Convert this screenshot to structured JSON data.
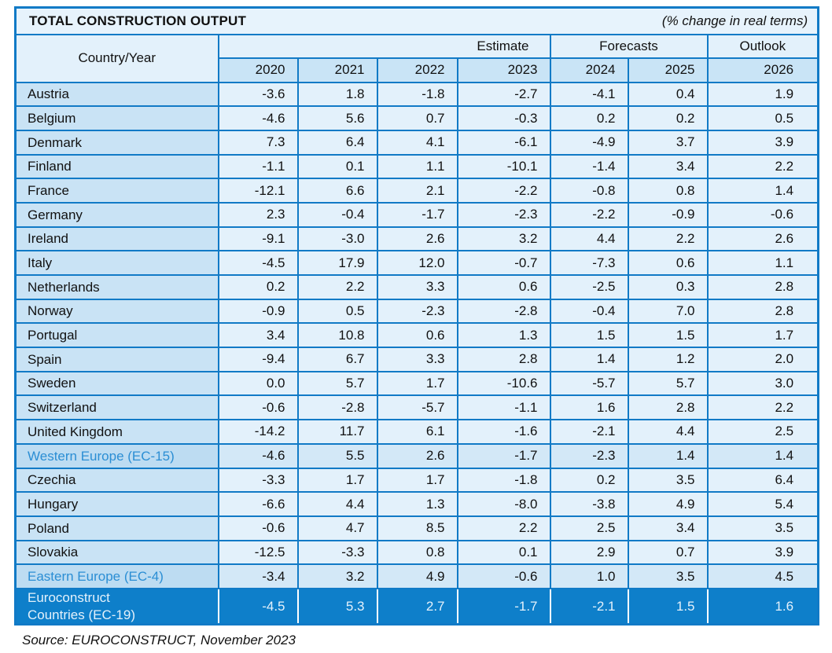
{
  "title": "TOTAL CONSTRUCTION OUTPUT",
  "subtitle": "(% change in real terms)",
  "header": {
    "country_year": "Country/Year",
    "group_labels": {
      "estimate": "Estimate",
      "forecasts": "Forecasts",
      "outlook": "Outlook"
    },
    "years": [
      "2020",
      "2021",
      "2022",
      "2023",
      "2024",
      "2025",
      "2026"
    ]
  },
  "source": "Source: EUROCONSTRUCT, November 2023",
  "colors": {
    "border_blue": "#117ac6",
    "total_row_background": "#0e7fca",
    "total_row_text": "#e4f1fb",
    "aggregate_label_blue": "#2b8ed4",
    "country_cell_background": "#c9e3f5",
    "value_cell_background": "#e3f1fb",
    "year_row_background": "#c9e4f6"
  },
  "chart_data": {
    "type": "table",
    "title": "TOTAL CONSTRUCTION OUTPUT (% change in real terms)",
    "columns": [
      "2020",
      "2021",
      "2022",
      "2023",
      "2024",
      "2025",
      "2026"
    ],
    "column_groups": [
      {
        "label": "Estimate",
        "columns": [
          "2023"
        ]
      },
      {
        "label": "Forecasts",
        "columns": [
          "2024",
          "2025"
        ]
      },
      {
        "label": "Outlook",
        "columns": [
          "2026"
        ]
      }
    ],
    "rows": [
      {
        "name": "Austria",
        "style": "country",
        "values": [
          -3.6,
          1.8,
          -1.8,
          -2.7,
          -4.1,
          0.4,
          1.9
        ]
      },
      {
        "name": "Belgium",
        "style": "country",
        "values": [
          -4.6,
          5.6,
          0.7,
          -0.3,
          0.2,
          0.2,
          0.5
        ]
      },
      {
        "name": "Denmark",
        "style": "country",
        "values": [
          7.3,
          6.4,
          4.1,
          -6.1,
          -4.9,
          3.7,
          3.9
        ]
      },
      {
        "name": "Finland",
        "style": "country",
        "values": [
          -1.1,
          0.1,
          1.1,
          -10.1,
          -1.4,
          3.4,
          2.2
        ]
      },
      {
        "name": "France",
        "style": "country",
        "values": [
          -12.1,
          6.6,
          2.1,
          -2.2,
          -0.8,
          0.8,
          1.4
        ]
      },
      {
        "name": "Germany",
        "style": "country",
        "values": [
          2.3,
          -0.4,
          -1.7,
          -2.3,
          -2.2,
          -0.9,
          -0.6
        ]
      },
      {
        "name": "Ireland",
        "style": "country",
        "values": [
          -9.1,
          -3.0,
          2.6,
          3.2,
          4.4,
          2.2,
          2.6
        ]
      },
      {
        "name": "Italy",
        "style": "country",
        "values": [
          -4.5,
          17.9,
          12.0,
          -0.7,
          -7.3,
          0.6,
          1.1
        ]
      },
      {
        "name": "Netherlands",
        "style": "country",
        "values": [
          0.2,
          2.2,
          3.3,
          0.6,
          -2.5,
          0.3,
          2.8
        ]
      },
      {
        "name": "Norway",
        "style": "country",
        "values": [
          -0.9,
          0.5,
          -2.3,
          -2.8,
          -0.4,
          7.0,
          2.8
        ]
      },
      {
        "name": "Portugal",
        "style": "country",
        "values": [
          3.4,
          10.8,
          0.6,
          1.3,
          1.5,
          1.5,
          1.7
        ]
      },
      {
        "name": "Spain",
        "style": "country",
        "values": [
          -9.4,
          6.7,
          3.3,
          2.8,
          1.4,
          1.2,
          2.0
        ]
      },
      {
        "name": "Sweden",
        "style": "country",
        "values": [
          0.0,
          5.7,
          1.7,
          -10.6,
          -5.7,
          5.7,
          3.0
        ]
      },
      {
        "name": "Switzerland",
        "style": "country",
        "values": [
          -0.6,
          -2.8,
          -5.7,
          -1.1,
          1.6,
          2.8,
          2.2
        ]
      },
      {
        "name": "United Kingdom",
        "style": "country",
        "values": [
          -14.2,
          11.7,
          6.1,
          -1.6,
          -2.1,
          4.4,
          2.5
        ]
      },
      {
        "name": "Western Europe (EC-15)",
        "style": "aggregate",
        "values": [
          -4.6,
          5.5,
          2.6,
          -1.7,
          -2.3,
          1.4,
          1.4
        ]
      },
      {
        "name": "Czechia",
        "style": "country",
        "values": [
          -3.3,
          1.7,
          1.7,
          -1.8,
          0.2,
          3.5,
          6.4
        ]
      },
      {
        "name": "Hungary",
        "style": "country",
        "values": [
          -6.6,
          4.4,
          1.3,
          -8.0,
          -3.8,
          4.9,
          5.4
        ]
      },
      {
        "name": "Poland",
        "style": "country",
        "values": [
          -0.6,
          4.7,
          8.5,
          2.2,
          2.5,
          3.4,
          3.5
        ]
      },
      {
        "name": "Slovakia",
        "style": "country",
        "values": [
          -12.5,
          -3.3,
          0.8,
          0.1,
          2.9,
          0.7,
          3.9
        ]
      },
      {
        "name": "Eastern Europe (EC-4)",
        "style": "aggregate",
        "values": [
          -3.4,
          3.2,
          4.9,
          -0.6,
          1.0,
          3.5,
          4.5
        ]
      },
      {
        "name": "Euroconstruct\nCountries (EC-19)",
        "style": "total",
        "values": [
          -4.5,
          5.3,
          2.7,
          -1.7,
          -2.1,
          1.5,
          1.6
        ]
      }
    ]
  }
}
